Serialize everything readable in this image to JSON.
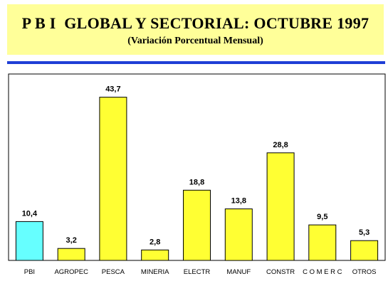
{
  "header": {
    "title": "P B I  GLOBAL Y SECTORIAL: OCTUBRE 1997",
    "subtitle": "(Variación Porcentual Mensual)"
  },
  "colors": {
    "header_bg": "#ffff99",
    "rule": "#1f3fd6",
    "highlight_bar": "#66ffff",
    "bar": "#ffff33"
  },
  "chart_data": {
    "type": "bar",
    "title": "P B I  GLOBAL Y SECTORIAL: OCTUBRE 1997",
    "subtitle": "(Variación Porcentual Mensual)",
    "categories": [
      "PBI",
      "AGROPEC",
      "PESCA",
      "MINERIA",
      "ELECTR",
      "MANUF",
      "CONSTR",
      "C O M E R C",
      "OTROS"
    ],
    "values": [
      10.4,
      3.2,
      43.7,
      2.8,
      18.8,
      13.8,
      28.8,
      9.5,
      5.3
    ],
    "value_labels": [
      "10,4",
      "3,2",
      "43,7",
      "2,8",
      "18,8",
      "13,8",
      "28,8",
      "9,5",
      "5,3"
    ],
    "highlight_category": "PBI",
    "xlabel": "",
    "ylabel": "",
    "ylim": [
      0,
      50
    ],
    "grid": false,
    "legend": "none"
  }
}
